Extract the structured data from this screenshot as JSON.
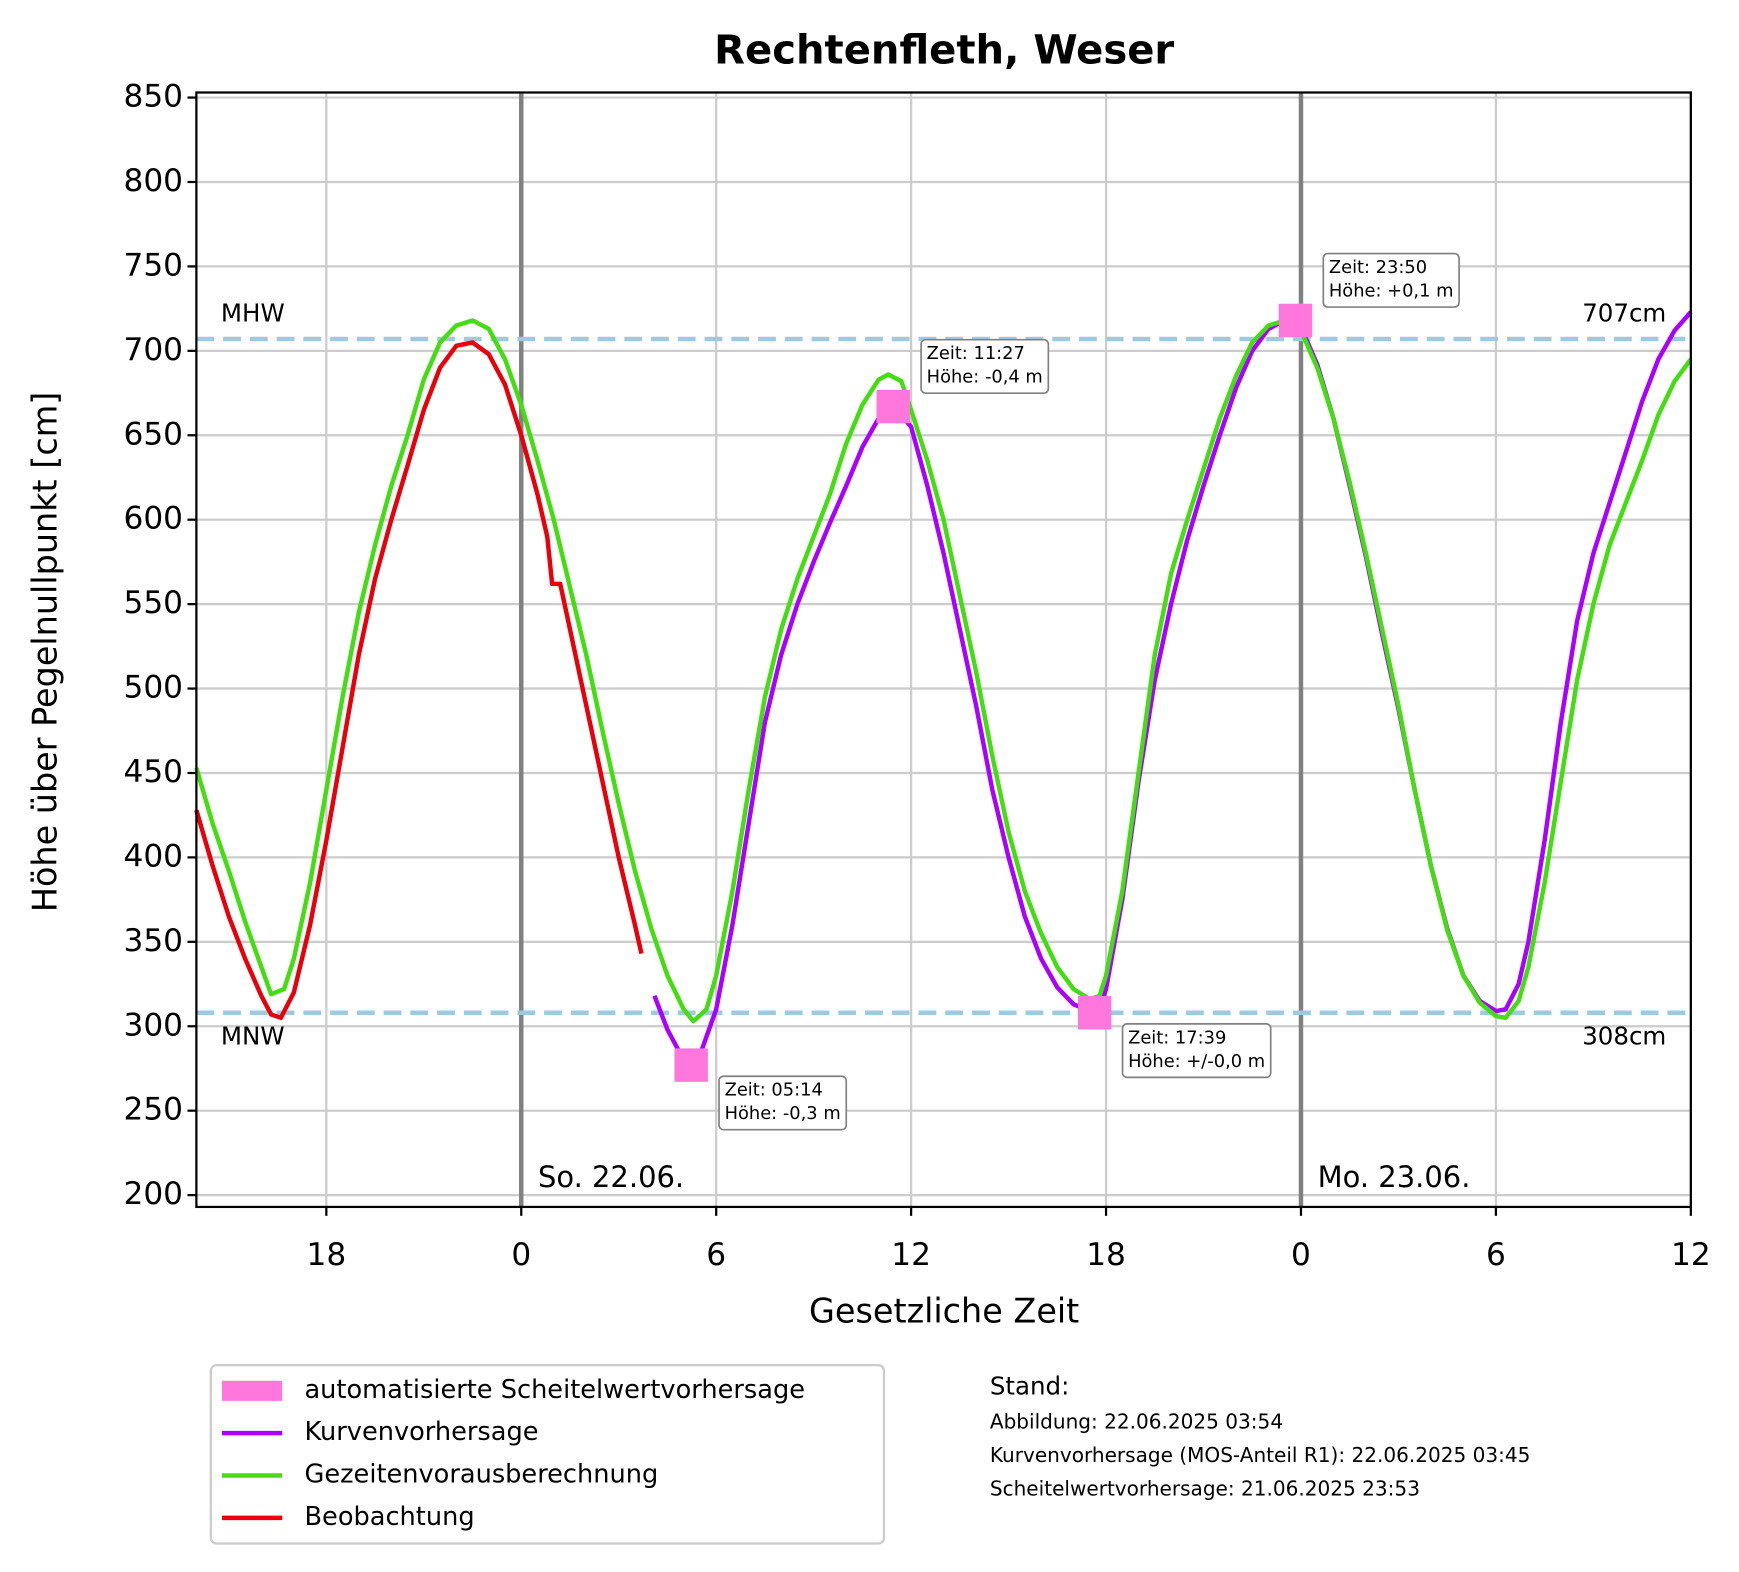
{
  "chart_data": {
    "type": "line",
    "title": "Rechtenfleth, Weser",
    "xlabel": "Gesetzliche Zeit",
    "ylabel": "Höhe über Pegelnullpunkt [cm]",
    "xlim": [
      -10,
      36
    ],
    "ylim": [
      193,
      853
    ],
    "xticks": [
      {
        "value": -6,
        "label": "18"
      },
      0,
      6,
      12,
      18,
      {
        "value": 24,
        "label": "0"
      },
      {
        "value": 30,
        "label": "6"
      },
      {
        "value": 36,
        "label": "12"
      }
    ],
    "yticks": [
      200,
      250,
      300,
      350,
      400,
      450,
      500,
      550,
      600,
      650,
      700,
      750,
      800,
      850
    ],
    "grid": true,
    "day_lines": [
      {
        "x": 0,
        "label": "So. 22.06."
      },
      {
        "x": 24,
        "label": "Mo. 23.06."
      }
    ],
    "reference_lines": [
      {
        "name": "MHW",
        "value": 707,
        "label": "707cm"
      },
      {
        "name": "MNW",
        "value": 308,
        "label": "308cm"
      }
    ],
    "series": [
      {
        "name": "automatisierte Scheitelwertvorhersage",
        "color": "#ff77dd",
        "kind": "marker",
        "x": [
          5.23,
          11.45,
          17.65,
          23.83
        ],
        "values": [
          277,
          667,
          308,
          718
        ],
        "annotations": [
          [
            "Zeit: 05:14",
            "Höhe: -0,3 m"
          ],
          [
            "Zeit: 11:27",
            "Höhe: -0,4 m"
          ],
          [
            "Zeit: 17:39",
            "Höhe: +/-0,0 m"
          ],
          [
            "Zeit: 23:50",
            "Höhe: +0,1 m"
          ]
        ]
      },
      {
        "name": "Kurvenvorhersage",
        "color": "#aa00ff",
        "x": [
          4.1,
          4.5,
          5,
          5.2,
          5.5,
          6,
          6.5,
          7,
          7.5,
          8,
          8.5,
          9,
          9.5,
          10,
          10.5,
          11,
          11.45,
          12,
          12.5,
          13,
          13.5,
          14,
          14.5,
          15,
          15.5,
          16,
          16.5,
          17,
          17.5,
          17.8,
          18,
          18.5,
          19,
          19.5,
          20,
          20.5,
          21,
          21.5,
          22,
          22.5,
          23,
          23.5,
          24,
          24.5,
          25,
          25.5,
          26,
          26.5,
          27,
          27.5,
          28,
          28.5,
          29,
          29.5,
          30,
          30.3,
          30.7,
          31,
          31.5,
          32,
          32.5,
          33,
          33.5,
          34,
          34.5,
          35,
          35.5,
          36
        ],
        "values": [
          318,
          298,
          280,
          277,
          283,
          310,
          360,
          420,
          480,
          520,
          550,
          575,
          598,
          620,
          643,
          660,
          667,
          655,
          620,
          580,
          535,
          490,
          440,
          400,
          365,
          340,
          323,
          313,
          309,
          310,
          322,
          375,
          445,
          505,
          550,
          588,
          620,
          650,
          678,
          700,
          713,
          718,
          714,
          692,
          660,
          620,
          578,
          532,
          488,
          440,
          395,
          358,
          330,
          315,
          309,
          310,
          325,
          350,
          410,
          480,
          540,
          580,
          610,
          640,
          670,
          695,
          712,
          723
        ]
      },
      {
        "name": "Gezeitenvorausberechnung",
        "color": "#44dd11",
        "x": [
          -10,
          -9.5,
          -9,
          -8.5,
          -8,
          -7.7,
          -7.3,
          -7,
          -6.5,
          -6,
          -5.5,
          -5,
          -4.5,
          -4,
          -3.5,
          -3,
          -2.5,
          -2,
          -1.5,
          -1,
          -0.5,
          0,
          0.5,
          1,
          1.5,
          2,
          2.5,
          3,
          3.5,
          4,
          4.5,
          5,
          5.3,
          5.7,
          6,
          6.5,
          7,
          7.5,
          8,
          8.5,
          9,
          9.5,
          10,
          10.5,
          11,
          11.3,
          11.7,
          12,
          12.5,
          13,
          13.5,
          14,
          14.5,
          15,
          15.5,
          16,
          16.5,
          17,
          17.5,
          17.8,
          18,
          18.5,
          19,
          19.5,
          20,
          20.5,
          21,
          21.5,
          22,
          22.5,
          23,
          23.5,
          24,
          24.5,
          25,
          25.5,
          26,
          26.5,
          27,
          27.5,
          28,
          28.5,
          29,
          29.5,
          30,
          30.3,
          30.7,
          31,
          31.5,
          32,
          32.5,
          33,
          33.5,
          34,
          34.5,
          35,
          35.5,
          36
        ],
        "values": [
          453,
          420,
          392,
          362,
          335,
          319,
          322,
          340,
          385,
          440,
          495,
          545,
          585,
          620,
          650,
          683,
          705,
          715,
          718,
          713,
          695,
          668,
          635,
          600,
          560,
          520,
          475,
          432,
          392,
          358,
          330,
          310,
          303,
          310,
          330,
          380,
          440,
          495,
          535,
          565,
          590,
          615,
          645,
          668,
          683,
          686,
          682,
          665,
          635,
          600,
          555,
          510,
          460,
          415,
          380,
          355,
          335,
          322,
          316,
          318,
          330,
          380,
          450,
          520,
          568,
          600,
          630,
          660,
          685,
          705,
          715,
          718,
          712,
          690,
          660,
          622,
          580,
          535,
          490,
          440,
          395,
          357,
          330,
          314,
          306,
          305,
          315,
          335,
          385,
          445,
          505,
          550,
          585,
          610,
          635,
          662,
          682,
          695
        ]
      },
      {
        "name": "Beobachtung",
        "color": "#e8000b",
        "x": [
          -10,
          -9.5,
          -9,
          -8.5,
          -8,
          -7.7,
          -7.4,
          -7,
          -6.5,
          -6,
          -5.5,
          -5,
          -4.5,
          -4,
          -3.5,
          -3,
          -2.5,
          -2,
          -1.5,
          -1,
          -0.5,
          0,
          0.5,
          0.8,
          0.95,
          1.2,
          1.5,
          2,
          2.5,
          3,
          3.5,
          3.7
        ],
        "values": [
          428,
          395,
          365,
          340,
          318,
          307,
          305,
          320,
          360,
          410,
          465,
          520,
          565,
          600,
          632,
          665,
          690,
          703,
          705,
          698,
          680,
          650,
          615,
          590,
          562,
          562,
          535,
          490,
          445,
          400,
          360,
          343
        ]
      }
    ],
    "stand": {
      "heading": "Stand:",
      "lines": [
        "Abbildung: 22.06.2025 03:54",
        "Kurvenvorhersage (MOS-Anteil R1): 22.06.2025 03:45",
        "Scheitelwertvorhersage: 21.06.2025 23:53"
      ]
    }
  }
}
